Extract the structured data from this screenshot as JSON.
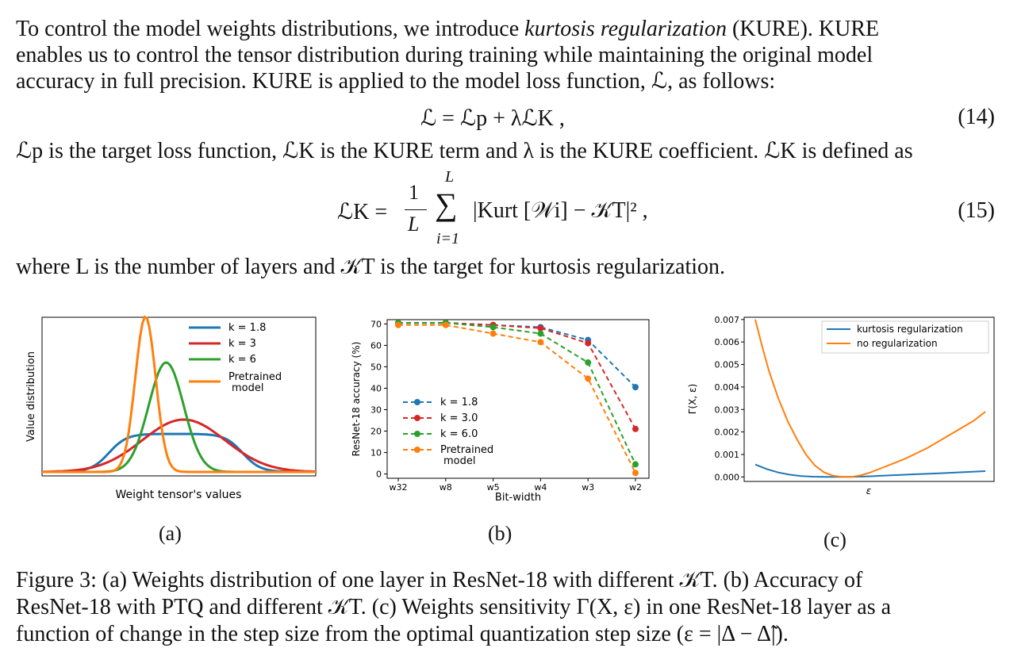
{
  "paragraph1": {
    "line1_a": "To control the model weights distributions, we introduce ",
    "line1_em": "kurtosis regularization",
    "line1_b": " (KURE). KURE",
    "line2": "enables us to control the tensor distribution during training while maintaining the original model",
    "line3": "accuracy in full precision. KURE is applied to the model loss function, ℒ, as follows:"
  },
  "eq14": {
    "text": "ℒ = ℒp + λℒK ,",
    "number": "(14)"
  },
  "paragraph2": "ℒp is the target loss function, ℒK is the KURE term and λ is the KURE coefficient. ℒK is defined as",
  "eq15": {
    "lhs": "ℒK =",
    "frac_num": "1",
    "frac_den": "L",
    "sum_top": "L",
    "sum_bottom": "i=1",
    "body": "|Kurt [𝒲i] − 𝒦T|² ,",
    "number": "(15)"
  },
  "paragraph3": "where L is the number of layers and 𝒦T is the target for kurtosis regularization.",
  "subfigure_labels": [
    "(a)",
    "(b)",
    "(c)"
  ],
  "caption": {
    "line1": "Figure 3: (a) Weights distribution of one layer in ResNet-18 with different 𝒦T. (b) Accuracy of",
    "line2": "ResNet-18 with PTQ and different 𝒦T. (c) Weights sensitivity Γ(X, ε) in one ResNet-18 layer as a",
    "line3": "function of change in the step size from the optimal quantization step size (ε = |Δ − Δ̃|)."
  },
  "chart_data": [
    {
      "type": "line",
      "xlabel": "Weight tensor's values",
      "ylabel": "Value distribution",
      "series": [
        {
          "name": "k = 1.8",
          "color": "#1f77b4"
        },
        {
          "name": "k = 3",
          "color": "#d62728"
        },
        {
          "name": "k = 6",
          "color": "#2ca02c"
        },
        {
          "name": "Pretrained\nmodel",
          "color": "#ff7f0e"
        }
      ],
      "legend": "top-right",
      "ticks": "none"
    },
    {
      "type": "line",
      "xlabel": "Bit-width",
      "ylabel": "ResNet-18 accuracy (%)",
      "categories": [
        "w32",
        "w8",
        "w5",
        "w4",
        "w3",
        "w2"
      ],
      "yticks": [
        0,
        10,
        20,
        30,
        40,
        50,
        60,
        70
      ],
      "ylim": [
        -2,
        72
      ],
      "series": [
        {
          "name": "k = 1.8",
          "color": "#1f77b4",
          "values": [
            70.5,
            70.5,
            69.5,
            68.5,
            62.5,
            40.5
          ]
        },
        {
          "name": "k = 3.0",
          "color": "#d62728",
          "values": [
            70.5,
            70.5,
            69.5,
            68,
            61,
            21
          ]
        },
        {
          "name": "k = 6.0",
          "color": "#2ca02c",
          "values": [
            70.5,
            70.5,
            68.5,
            65.5,
            52,
            4.5
          ]
        },
        {
          "name": "Pretrained\nmodel",
          "color": "#ff7f0e",
          "values": [
            69.5,
            69.5,
            65.5,
            61.5,
            44.5,
            0.5
          ]
        }
      ],
      "legend": "center-right"
    },
    {
      "type": "line",
      "xlabel": "ε",
      "ylabel": "Γ(X, ε)",
      "yticks": [
        "0.000",
        "0.001",
        "0.002",
        "0.003",
        "0.004",
        "0.005",
        "0.006",
        "0.007"
      ],
      "ylim": [
        -0.0002,
        0.0071
      ],
      "series": [
        {
          "name": "kurtosis regularization",
          "color": "#1f77b4",
          "x": [
            0,
            0.05,
            0.1,
            0.15,
            0.2,
            0.25,
            0.3,
            0.35,
            0.4,
            0.45,
            0.5,
            0.6,
            0.7,
            0.8,
            0.9,
            1.0
          ],
          "values": [
            0.00055,
            0.00035,
            0.0002,
            0.0001,
            4e-05,
            1e-05,
            0.0,
            0.0,
            0.0,
            1e-05,
            3e-05,
            8e-05,
            0.00012,
            0.00016,
            0.00021,
            0.00026
          ]
        },
        {
          "name": "no regularization",
          "color": "#ff7f0e",
          "x": [
            0,
            0.03,
            0.06,
            0.1,
            0.14,
            0.18,
            0.22,
            0.26,
            0.3,
            0.34,
            0.38,
            0.42,
            0.46,
            0.5,
            0.55,
            0.6,
            0.65,
            0.7,
            0.75,
            0.8,
            0.85,
            0.9,
            0.95,
            1.0
          ],
          "values": [
            0.007,
            0.0058,
            0.0047,
            0.0035,
            0.0025,
            0.0017,
            0.001,
            0.0005,
            0.0002,
            5e-05,
            0.0,
            0.0,
            8e-05,
            0.0002,
            0.0004,
            0.0006,
            0.0008,
            0.00105,
            0.0013,
            0.0016,
            0.0019,
            0.0022,
            0.0025,
            0.0029
          ]
        }
      ],
      "legend": "top-right"
    }
  ]
}
